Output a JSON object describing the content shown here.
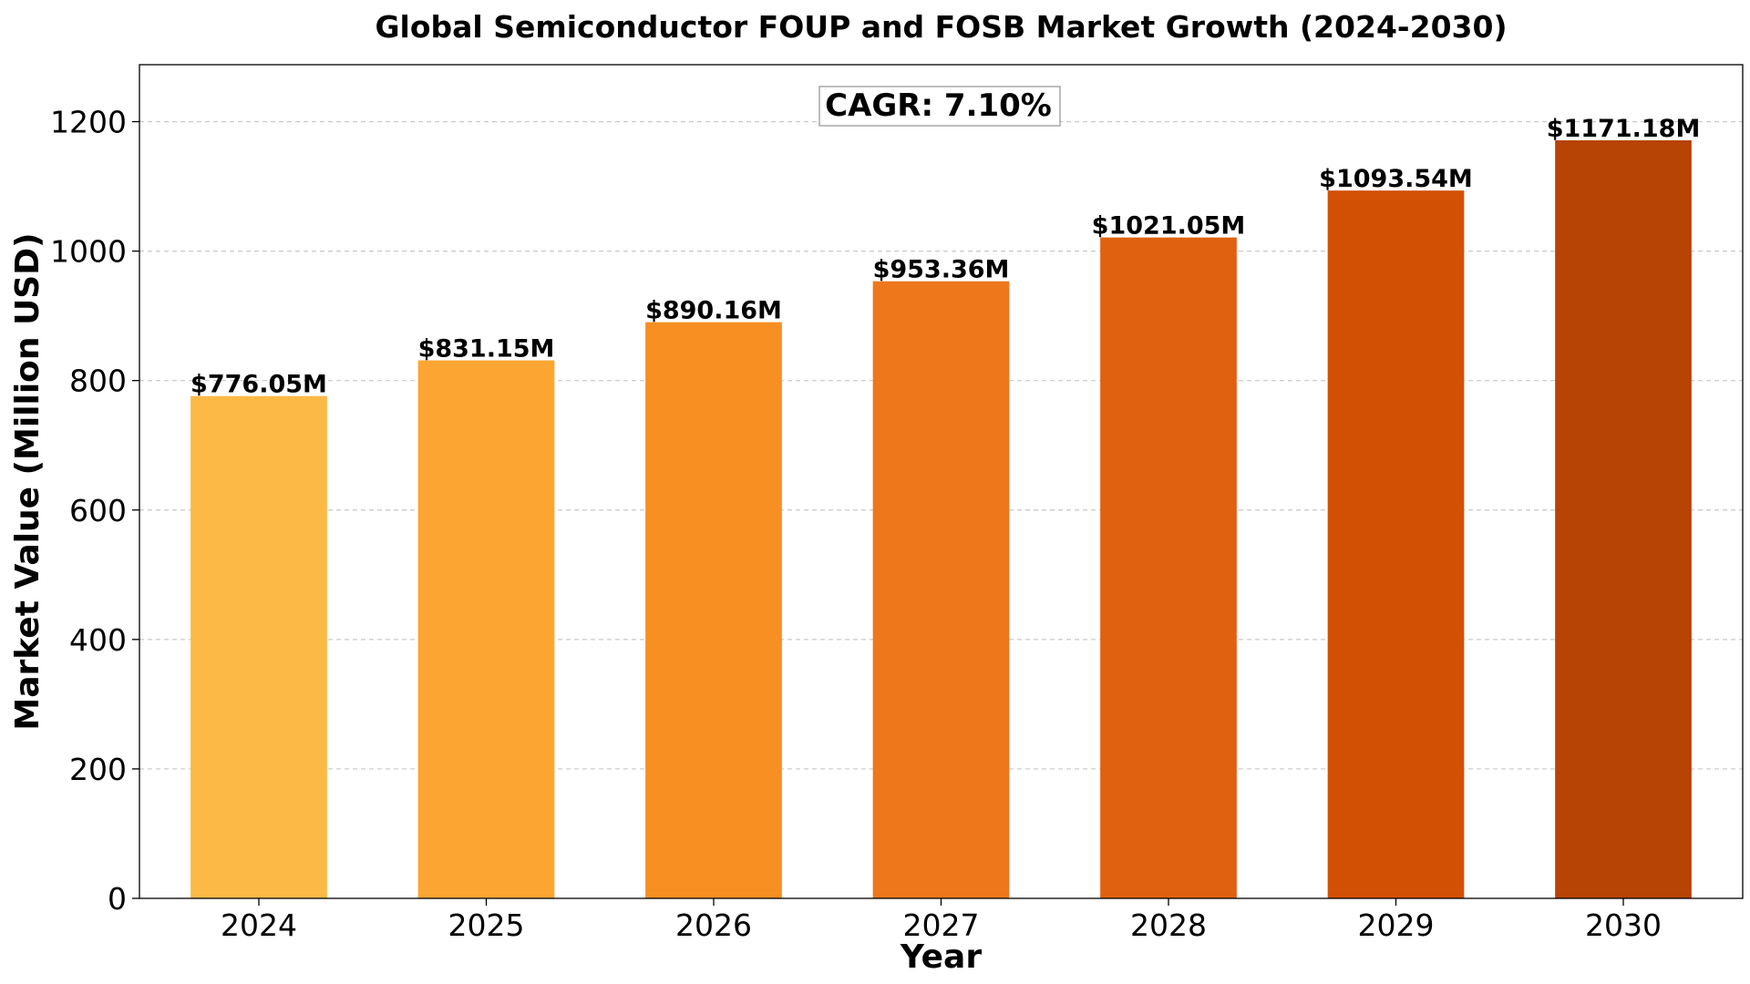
{
  "chart_data": {
    "type": "bar",
    "title": "Global Semiconductor FOUP and FOSB Market Growth (2024-2030)",
    "xlabel": "Year",
    "ylabel": "Market Value (Million USD)",
    "categories": [
      "2024",
      "2025",
      "2026",
      "2027",
      "2028",
      "2029",
      "2030"
    ],
    "values": [
      776.05,
      831.15,
      890.16,
      953.36,
      1021.05,
      1093.54,
      1171.18
    ],
    "value_labels": [
      "$776.05M",
      "$831.15M",
      "$890.16M",
      "$953.36M",
      "$1021.05M",
      "$1093.54M",
      "$1171.18M"
    ],
    "bar_colors": [
      "#fdb946",
      "#fca532",
      "#f78f23",
      "#ee771b",
      "#e06211",
      "#d25004",
      "#b74305"
    ],
    "ylim": [
      0,
      1288
    ],
    "yticks": [
      0,
      200,
      400,
      600,
      800,
      1000,
      1200
    ],
    "grid": "y-dashed",
    "annotation": "CAGR: 7.10%"
  }
}
